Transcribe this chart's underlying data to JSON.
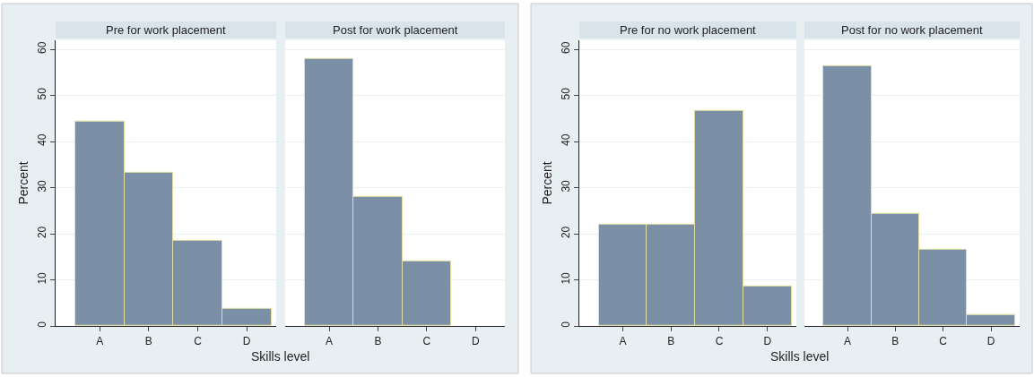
{
  "chart_data": [
    {
      "type": "bar",
      "title": "Pre for work placement",
      "xlabel": "Skills level",
      "ylabel": "Percent",
      "categories": [
        "A",
        "B",
        "C",
        "D"
      ],
      "values": [
        44.4,
        33.3,
        18.5,
        3.7
      ],
      "color": "#7b8fa6",
      "ylim": [
        0,
        62
      ],
      "yticks": [
        0,
        10,
        20,
        30,
        40,
        50,
        60
      ],
      "grid": "y"
    },
    {
      "type": "bar",
      "title": "Post for work placement",
      "categories": [
        "A",
        "B",
        "C",
        "D"
      ],
      "values": [
        57.9,
        28.1,
        14.0,
        0
      ],
      "color": "#7b8fa6",
      "ylim": [
        0,
        62
      ],
      "yticks": [
        0,
        10,
        20,
        30,
        40,
        50,
        60
      ],
      "grid": "y",
      "tick_labels": "x"
    },
    {
      "type": "bar",
      "title": "Pre for no work placement",
      "xlabel": "Skills level",
      "ylabel": "Percent",
      "categories": [
        "A",
        "B",
        "C",
        "D"
      ],
      "values": [
        22.1,
        22.1,
        46.7,
        8.7
      ],
      "color": "#7b8fa6",
      "ylim": [
        0,
        62
      ],
      "yticks": [
        0,
        10,
        20,
        30,
        40,
        50,
        60
      ],
      "grid": "y"
    },
    {
      "type": "bar",
      "title": "Post for no work placement",
      "categories": [
        "A",
        "B",
        "C",
        "D"
      ],
      "values": [
        56.4,
        24.3,
        16.5,
        2.5
      ],
      "color": "#7b8fa6",
      "ylim": [
        0,
        62
      ],
      "yticks": [
        0,
        10,
        20,
        30,
        40,
        50,
        60
      ],
      "grid": "y",
      "tick_labels": "x"
    }
  ]
}
